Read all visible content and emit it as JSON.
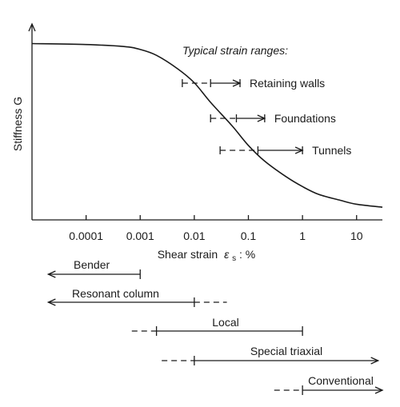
{
  "chart_data": {
    "type": "line",
    "xlabel": "Shear strain ε_s: %",
    "xlabel_main": "Shear strain",
    "xlabel_symbol": "ε",
    "xlabel_subscript": "s",
    "xlabel_unit": ": %",
    "ylabel": "Stiffness G",
    "x_scale": "log",
    "x_ticks": [
      {
        "value": 0.0001,
        "label": "0.0001"
      },
      {
        "value": 0.001,
        "label": "0.001"
      },
      {
        "value": 0.01,
        "label": "0.01"
      },
      {
        "value": 0.1,
        "label": "0.1"
      },
      {
        "value": 1,
        "label": "1"
      },
      {
        "value": 10,
        "label": "10"
      }
    ],
    "xlim": [
      1e-05,
      30
    ],
    "ylim": [
      0,
      1
    ],
    "series": [
      {
        "x": [
          1e-05,
          0.0001,
          0.0005,
          0.001,
          0.002,
          0.005,
          0.01,
          0.02,
          0.05,
          0.1,
          0.2,
          0.5,
          1,
          2,
          5,
          10,
          30
        ],
        "y": [
          0.9,
          0.895,
          0.885,
          0.87,
          0.84,
          0.77,
          0.7,
          0.6,
          0.48,
          0.38,
          0.3,
          0.22,
          0.17,
          0.13,
          0.1,
          0.08,
          0.065
        ]
      }
    ],
    "annotation_title": "Typical strain ranges:",
    "strain_ranges": [
      {
        "label": "Retaining walls",
        "dashed": [
          0.006,
          0.02
        ],
        "solid": [
          0.02,
          0.07
        ]
      },
      {
        "label": "Foundations",
        "dashed": [
          0.02,
          0.06
        ],
        "solid": [
          0.06,
          0.2
        ]
      },
      {
        "label": "Tunnels",
        "dashed": [
          0.03,
          0.15
        ],
        "solid": [
          0.15,
          1
        ]
      }
    ],
    "test_ranges": [
      {
        "label": "Bender",
        "arrow_left": true,
        "arrow_right": false,
        "solid": [
          2e-05,
          0.001
        ],
        "dashed_left": null,
        "dashed_right": null
      },
      {
        "label": "Resonant column",
        "arrow_left": true,
        "arrow_right": false,
        "solid": [
          2e-05,
          0.01
        ],
        "dashed_left": null,
        "dashed_right": [
          0.01,
          0.04
        ]
      },
      {
        "label": "Local",
        "arrow_left": false,
        "arrow_right": false,
        "solid": [
          0.002,
          1
        ],
        "dashed_left": [
          0.0007,
          0.002
        ],
        "dashed_right": null
      },
      {
        "label": "Special triaxial",
        "arrow_left": false,
        "arrow_right": true,
        "solid": [
          0.01,
          25
        ],
        "dashed_left": [
          0.0025,
          0.01
        ],
        "dashed_right": null
      },
      {
        "label": "Conventional",
        "arrow_left": false,
        "arrow_right": true,
        "solid": [
          1,
          30
        ],
        "dashed_left": [
          0.3,
          1
        ],
        "dashed_right": null
      }
    ]
  }
}
